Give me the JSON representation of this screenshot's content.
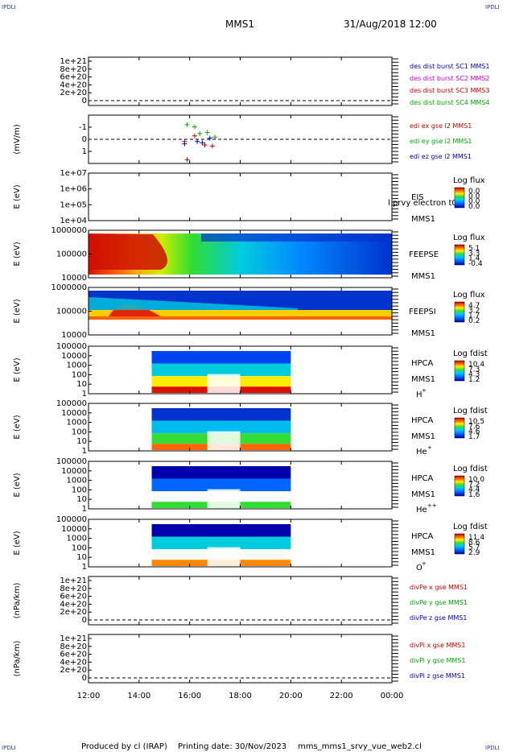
{
  "header": {
    "mission": "MMS1",
    "datetime": "31/Aug/2018 12:00",
    "corner_label": "IPDLI"
  },
  "footer": {
    "produced_by": "Produced by cl (IRAP)",
    "printing_date": "Printing date: 30/Nov/2023",
    "script_name": "mms_mms1_srvy_vue_web2.cl"
  },
  "chart_data": {
    "type": "multi-panel time series",
    "x_ticks": [
      "12:00",
      "14:00",
      "16:00",
      "18:00",
      "20:00",
      "22:00",
      "00:00"
    ],
    "x_range_hours": [
      12,
      24
    ],
    "panels": [
      {
        "id": "p1",
        "type": "line",
        "yticks": [
          "1e+21",
          "8e+20",
          "6e+20",
          "4e+20",
          "2e+20",
          "0"
        ],
        "ylabel": "",
        "legend": [
          {
            "label": "des dist burst SC1 MMS1",
            "color": "#0000cc"
          },
          {
            "label": "des dist burst SC2 MMS2",
            "color": "#cc00cc"
          },
          {
            "label": "des dist burst SC3 MMS3",
            "color": "#cc0000"
          },
          {
            "label": "des dist burst SC4 MMS4",
            "color": "#00aa00"
          }
        ]
      },
      {
        "id": "p2",
        "type": "scatter",
        "yticks": [
          "1",
          "0",
          "-1"
        ],
        "ylabel": "(mV/m)",
        "legend": [
          {
            "label": "edi ex gse l2 MMS1",
            "color": "#cc0000"
          },
          {
            "label": "edi ey gse l2 MMS1",
            "color": "#00aa00"
          },
          {
            "label": "edi ez gse l2 MMS1",
            "color": "#0000cc"
          }
        ]
      },
      {
        "id": "p3",
        "type": "heatmap",
        "yticks": [
          "1e+07",
          "1e+06",
          "1e+05",
          "1e+04"
        ],
        "ylabel": "E (eV)",
        "instrument": [
          "EIS",
          "MMS1"
        ],
        "overlay_text": "l prvy electron t0",
        "colorbar_title": "Log flux",
        "colorbar_ticks": [
          "0.0",
          "0.0",
          "0.0",
          "0.0"
        ]
      },
      {
        "id": "p4",
        "type": "heatmap",
        "yticks": [
          "1000000",
          "100000",
          "10000"
        ],
        "ylabel": "E (eV)",
        "instrument": [
          "FEEPSE",
          "MMS1"
        ],
        "colorbar_title": "Log flux",
        "colorbar_ticks": [
          "5.1",
          "3.3",
          "1.4",
          "-0.4"
        ]
      },
      {
        "id": "p5",
        "type": "heatmap",
        "yticks": [
          "1000000",
          "100000",
          "10000"
        ],
        "ylabel": "E (eV)",
        "instrument": [
          "FEEPSI",
          "MMS1"
        ],
        "colorbar_title": "Log flux",
        "colorbar_ticks": [
          "4.7",
          "3.2",
          "1.7",
          "0.2"
        ]
      },
      {
        "id": "p6",
        "type": "heatmap",
        "yticks": [
          "100000",
          "10000",
          "1000",
          "100",
          "10",
          "1"
        ],
        "ylabel": "E (eV)",
        "instrument": [
          "HPCA",
          "MMS1"
        ],
        "species": "H",
        "species_sup": "+",
        "colorbar_title": "Log fdist",
        "colorbar_ticks": [
          "10.4",
          "7.3",
          "4.3",
          "1.2"
        ]
      },
      {
        "id": "p7",
        "type": "heatmap",
        "yticks": [
          "100000",
          "10000",
          "1000",
          "100",
          "10",
          "1"
        ],
        "ylabel": "E (eV)",
        "instrument": [
          "HPCA",
          "MMS1"
        ],
        "species": "He",
        "species_sup": "+",
        "colorbar_title": "Log fdist",
        "colorbar_ticks": [
          "10.5",
          "7.6",
          "4.6",
          "1.7"
        ]
      },
      {
        "id": "p8",
        "type": "heatmap",
        "yticks": [
          "100000",
          "10000",
          "1000",
          "100",
          "10",
          "1"
        ],
        "ylabel": "E (eV)",
        "instrument": [
          "HPCA",
          "MMS1"
        ],
        "species": "He",
        "species_sup": "++",
        "colorbar_title": "Log fdist",
        "colorbar_ticks": [
          "10.0",
          "7.2",
          "4.4",
          "1.6"
        ]
      },
      {
        "id": "p9",
        "type": "heatmap",
        "yticks": [
          "100000",
          "10000",
          "1000",
          "100",
          "10",
          "1"
        ],
        "ylabel": "E (eV)",
        "instrument": [
          "HPCA",
          "MMS1"
        ],
        "species": "O",
        "species_sup": "+",
        "colorbar_title": "Log fdist",
        "colorbar_ticks": [
          "11.4",
          "8.6",
          "5.7",
          "2.9"
        ]
      },
      {
        "id": "p10",
        "type": "line",
        "yticks": [
          "1e+21",
          "8e+20",
          "6e+20",
          "4e+20",
          "2e+20",
          "0"
        ],
        "ylabel": "(nPa/km)",
        "legend": [
          {
            "label": "divPe x gse MMS1",
            "color": "#cc0000"
          },
          {
            "label": "divPe y gse MMS1",
            "color": "#00aa00"
          },
          {
            "label": "divPe z gse MMS1",
            "color": "#0000cc"
          }
        ]
      },
      {
        "id": "p11",
        "type": "line",
        "yticks": [
          "1e+21",
          "8e+20",
          "6e+20",
          "4e+20",
          "2e+20",
          "0"
        ],
        "ylabel": "(nPa/km)",
        "legend": [
          {
            "label": "divPi x gse MMS1",
            "color": "#cc0000"
          },
          {
            "label": "divPi y gse MMS1",
            "color": "#00aa00"
          },
          {
            "label": "divPi z gse MMS1",
            "color": "#0000cc"
          }
        ]
      }
    ]
  }
}
